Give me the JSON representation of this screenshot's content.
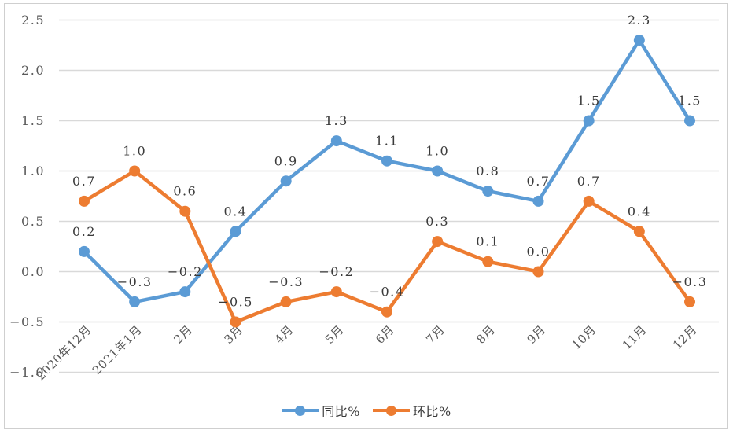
{
  "chart_data": {
    "type": "line",
    "categories": [
      "2020年12月",
      "2021年1月",
      "2月",
      "3月",
      "4月",
      "5月",
      "6月",
      "7月",
      "8月",
      "9月",
      "10月",
      "11月",
      "12月"
    ],
    "series": [
      {
        "name": "同比%",
        "color": "#5b9bd5",
        "values": [
          0.2,
          -0.3,
          -0.2,
          0.4,
          0.9,
          1.3,
          1.1,
          1.0,
          0.8,
          0.7,
          1.5,
          2.3,
          1.5
        ],
        "labels": [
          "0.2",
          "-0.3",
          "-0.2",
          "0.4",
          "0.9",
          "1.3",
          "1.1",
          "1.0",
          "0.8",
          "0.7",
          "1.5",
          "2.3",
          "1.5"
        ]
      },
      {
        "name": "环比%",
        "color": "#ed7c31",
        "values": [
          0.7,
          1.0,
          0.6,
          -0.5,
          -0.3,
          -0.2,
          -0.4,
          0.3,
          0.1,
          0.0,
          0.7,
          0.4,
          -0.3
        ],
        "labels": [
          "0.7",
          "1.0",
          "0.6",
          "-0.5",
          "-0.3",
          "-0.2",
          "-0.4",
          "0.3",
          "0.1",
          "0.0",
          "0.7",
          "0.4",
          "-0.3"
        ]
      }
    ],
    "yticks": [
      "2.5",
      "2.0",
      "1.5",
      "1.0",
      "0.5",
      "0.0",
      "-0.5",
      "-1.0"
    ],
    "ylim": [
      -1.0,
      2.5
    ],
    "grid": true,
    "data_labels": true,
    "legend_position": "bottom",
    "title": "",
    "xlabel": "",
    "ylabel": ""
  },
  "colors": {
    "gridline": "#d9d9d9",
    "frame_border": "#cfcfcf",
    "tick_text": "#595959",
    "label_text": "#3a3a3a",
    "background": "#ffffff"
  }
}
